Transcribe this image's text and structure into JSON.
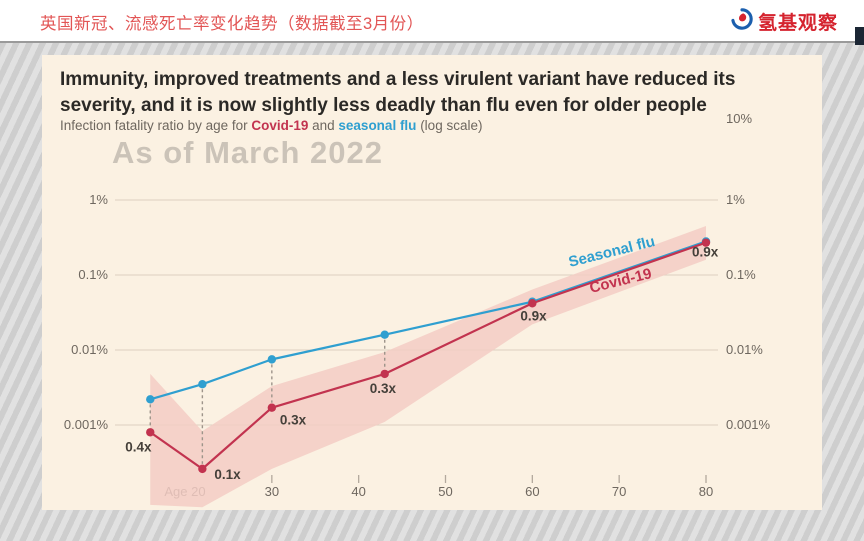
{
  "header": {
    "title": "英国新冠、流感死亡率变化趋势（数据截至3月份）",
    "logo_text": "氢基观察"
  },
  "colors": {
    "header_title": "#e25555",
    "logo": "#d5232e",
    "slide_background": "#fbf1e2",
    "watermark": "#cbc3b8"
  },
  "slide": {
    "headline_lines": [
      "Immunity, improved treatments and a less virulent variant have reduced its",
      "severity, and it is now slightly less deadly than flu even for older people"
    ],
    "subtitle": {
      "part1": "Infection fatality ratio by age for ",
      "covid": "Covid-19",
      "part2": " and ",
      "flu": "seasonal flu",
      "part3": " (log scale)"
    }
  },
  "chart_data": {
    "type": "line",
    "title": "Immunity, improved treatments and a less virulent variant have reduced its severity, and it is now slightly less deadly than flu even for older people",
    "subtitle": "Infection fatality ratio by age for Covid-19 and seasonal flu (log scale)",
    "annotation": "As of March 2022",
    "y_scale": "log",
    "y_unit": "percent",
    "x_label": "Age",
    "x": [
      16,
      22,
      30,
      43,
      60,
      80
    ],
    "x_ticks": [
      {
        "age": 20,
        "label": "Age 20"
      },
      {
        "age": 30,
        "label": "30"
      },
      {
        "age": 40,
        "label": "40"
      },
      {
        "age": 50,
        "label": "50"
      },
      {
        "age": 60,
        "label": "60"
      },
      {
        "age": 70,
        "label": "70"
      },
      {
        "age": 80,
        "label": "80"
      }
    ],
    "gridlines": [
      {
        "value": 1,
        "label": "1%"
      },
      {
        "value": 0.1,
        "label": "0.1%"
      },
      {
        "value": 0.01,
        "label": "0.01%"
      },
      {
        "value": 0.001,
        "label": "0.001%"
      }
    ],
    "right_axis_top_label": "10%",
    "series": [
      {
        "name": "Seasonal flu",
        "color": "#2f9fd0",
        "values": [
          0.0022,
          0.0035,
          0.0075,
          0.016,
          0.044,
          0.28
        ]
      },
      {
        "name": "Covid-19",
        "color": "#c2334f",
        "values": [
          0.0008,
          0.00026,
          0.0017,
          0.0048,
          0.042,
          0.27
        ],
        "band_color": "#f3ccc4",
        "band_upper": [
          0.0048,
          0.00083,
          0.0033,
          0.0094,
          0.064,
          0.45
        ],
        "band_lower": [
          8.6e-05,
          8e-05,
          0.00026,
          0.0011,
          0.022,
          0.16
        ]
      }
    ],
    "ratio_labels": [
      "0.4x",
      "0.1x",
      "0.3x",
      "0.3x",
      "0.9x",
      "0.9x"
    ]
  }
}
